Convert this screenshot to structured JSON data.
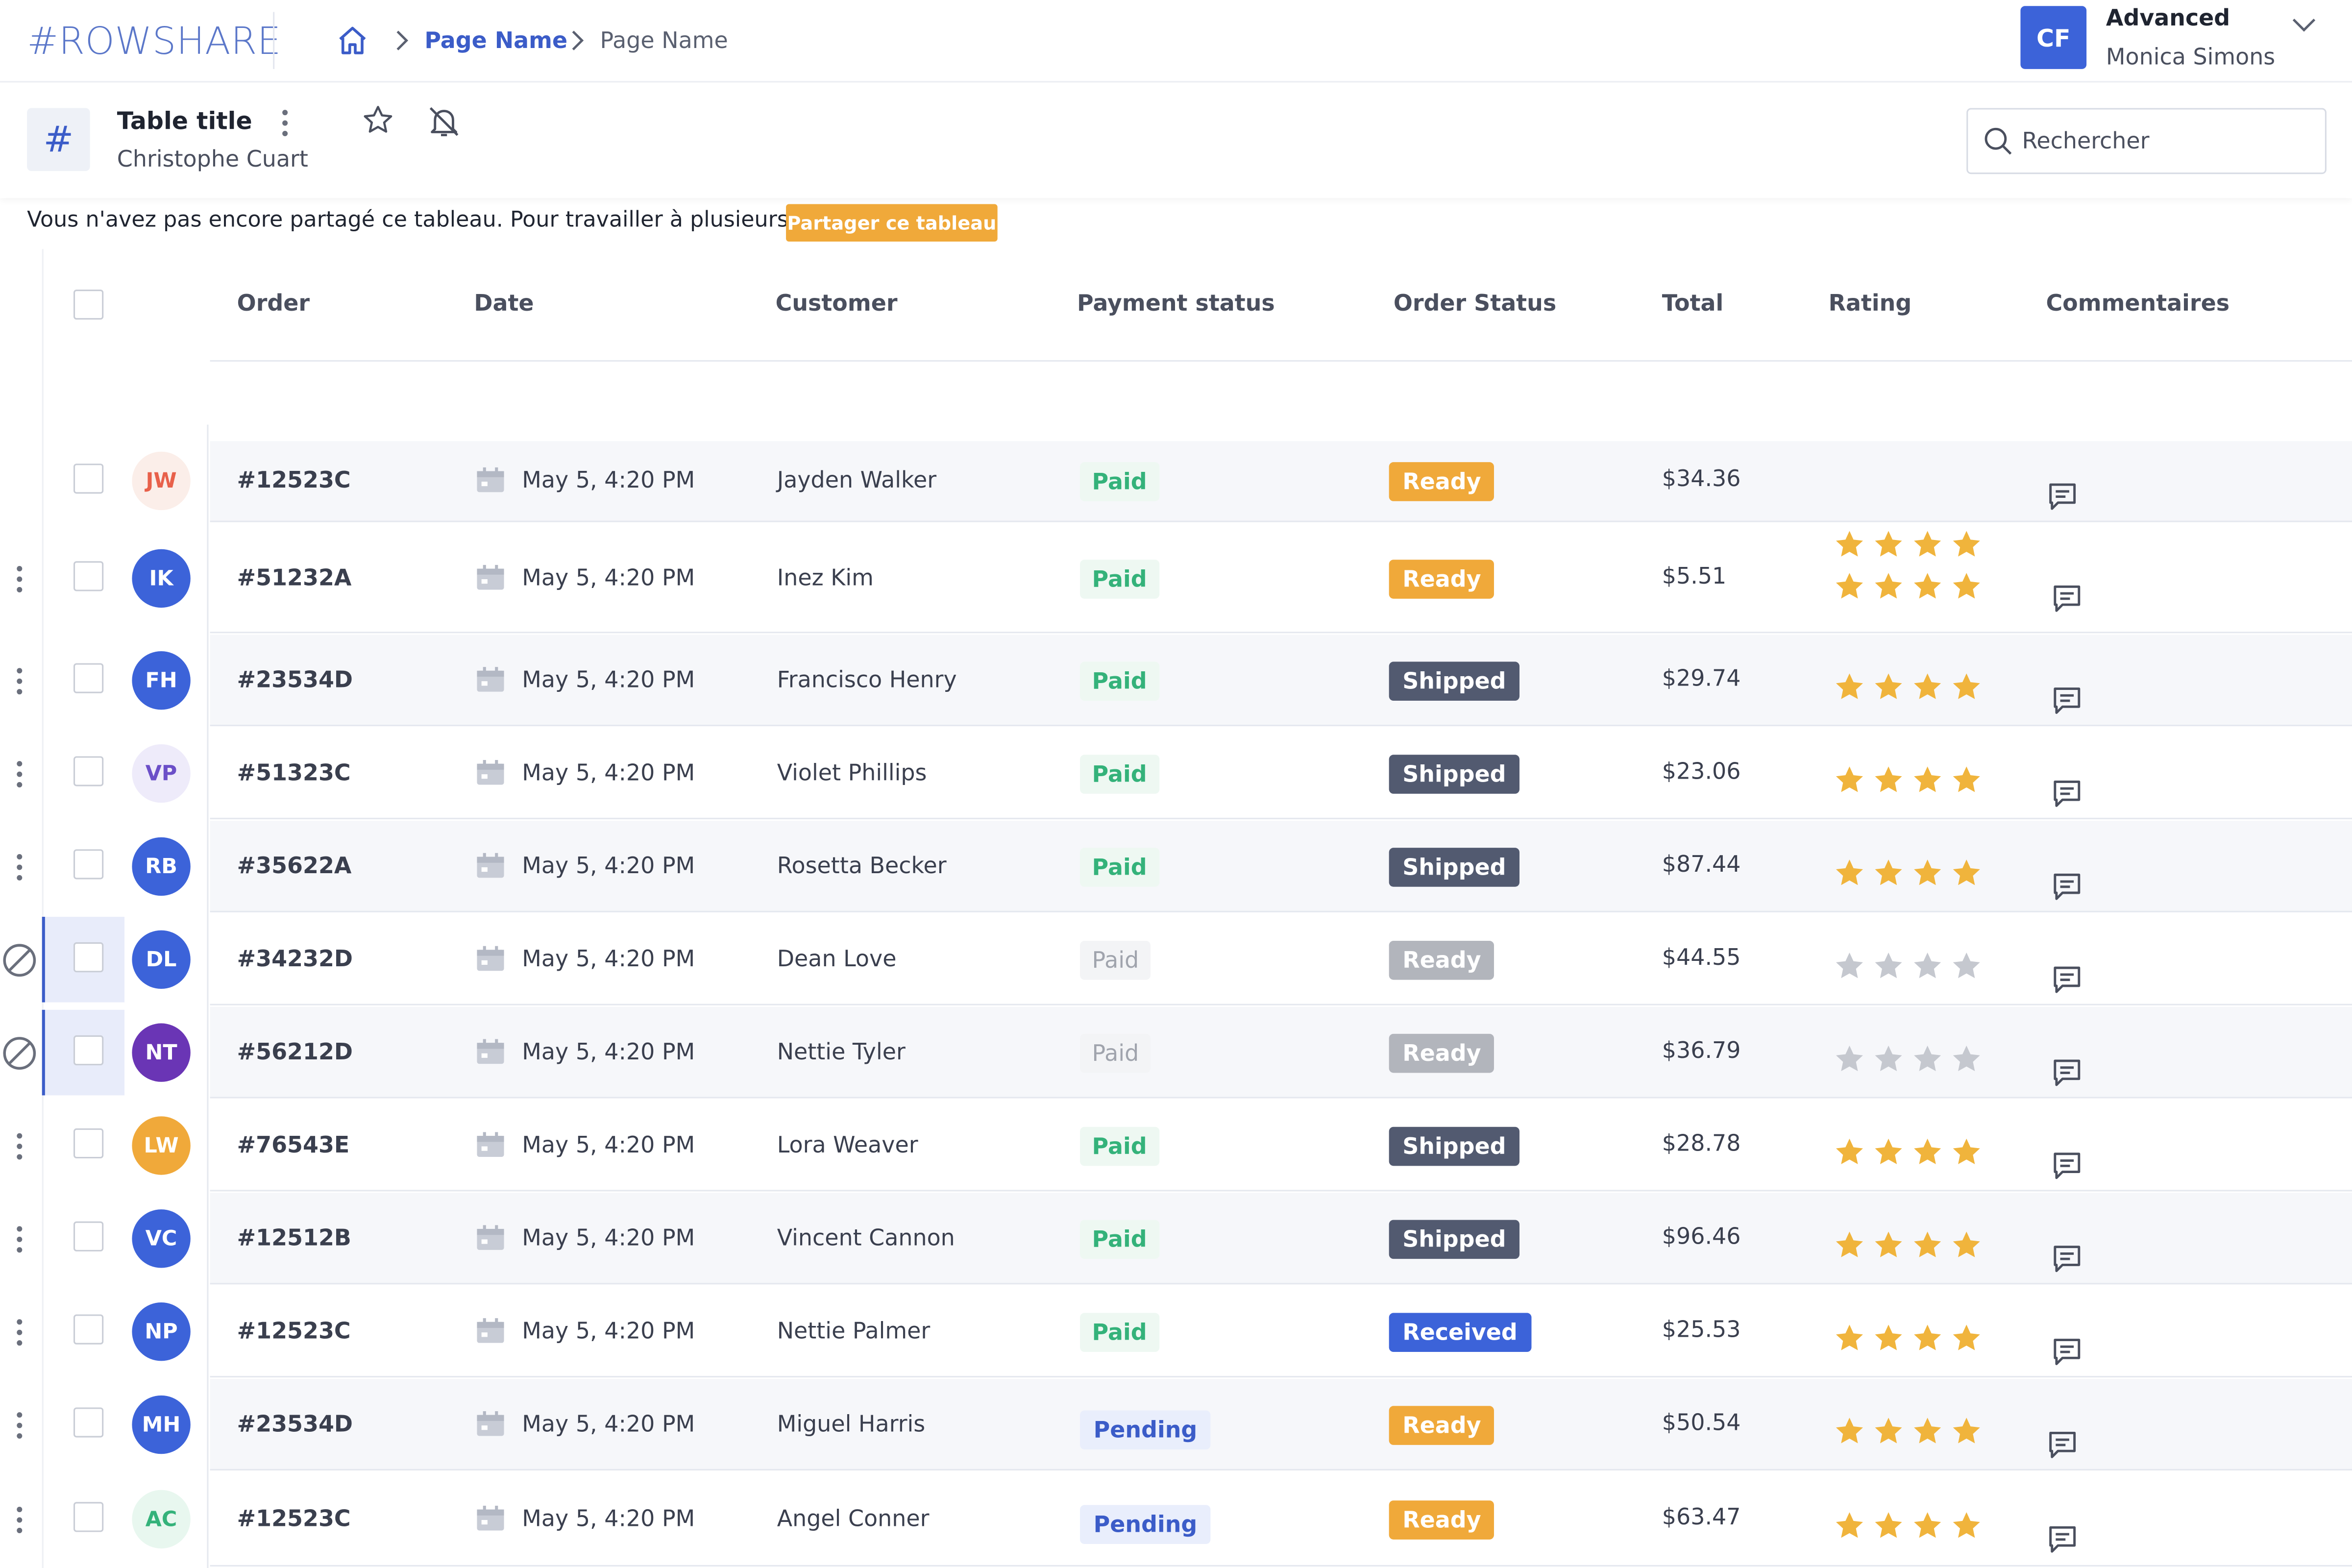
{
  "brand": {
    "logo": "#ROWSHARE"
  },
  "breadcrumb": {
    "items": [
      "Page Name",
      "Page Name"
    ]
  },
  "user": {
    "initials": "CF",
    "plan": "Advanced",
    "name": "Monica Simons"
  },
  "table": {
    "title": "Table title",
    "owner": "Christophe Cuart",
    "hash": "#"
  },
  "search": {
    "placeholder": "Rechercher"
  },
  "notice": {
    "text": "Vous n'avez pas encore partagé ce tableau. Pour travailler à plusieurs :",
    "button": "Partager ce tableau"
  },
  "columns": [
    "Order",
    "Date",
    "Customer",
    "Payment status",
    "Order Status",
    "Total",
    "Rating",
    "Commentaires"
  ],
  "colors": {
    "accent": "#3c63d9",
    "ready": "#f0a93a",
    "shipped": "#525a70",
    "paid": "#34b27a",
    "star": "#f0b43c"
  },
  "rows": [
    {
      "initials": "JW",
      "order": "#12523C",
      "date": "May 5, 4:20 PM",
      "customer": "Jayden Walker",
      "payment": "Paid",
      "status": "Ready",
      "total": "$34.36",
      "rating": 0
    },
    {
      "initials": "IK",
      "order": "#51232A",
      "date": "May 5, 4:20 PM",
      "customer": "Inez Kim",
      "payment": "Paid",
      "status": "Ready",
      "total": "$5.51",
      "rating": 4
    },
    {
      "initials": "FH",
      "order": "#23534D",
      "date": "May 5, 4:20 PM",
      "customer": "Francisco Henry",
      "payment": "Paid",
      "status": "Shipped",
      "total": "$29.74",
      "rating": 4
    },
    {
      "initials": "VP",
      "order": "#51323C",
      "date": "May 5, 4:20 PM",
      "customer": "Violet Phillips",
      "payment": "Paid",
      "status": "Shipped",
      "total": "$23.06",
      "rating": 4
    },
    {
      "initials": "RB",
      "order": "#35622A",
      "date": "May 5, 4:20 PM",
      "customer": "Rosetta Becker",
      "payment": "Paid",
      "status": "Shipped",
      "total": "$87.44",
      "rating": 4
    },
    {
      "initials": "DL",
      "order": "#34232D",
      "date": "May 5, 4:20 PM",
      "customer": "Dean Love",
      "payment": "Paid",
      "status": "Ready",
      "total": "$44.55",
      "rating": 4,
      "blocked": true
    },
    {
      "initials": "NT",
      "order": "#56212D",
      "date": "May 5, 4:20 PM",
      "customer": "Nettie Tyler",
      "payment": "Paid",
      "status": "Ready",
      "total": "$36.79",
      "rating": 4,
      "blocked": true
    },
    {
      "initials": "LW",
      "order": "#76543E",
      "date": "May 5, 4:20 PM",
      "customer": "Lora Weaver",
      "payment": "Paid",
      "status": "Shipped",
      "total": "$28.78",
      "rating": 4
    },
    {
      "initials": "VC",
      "order": "#12512B",
      "date": "May 5, 4:20 PM",
      "customer": "Vincent Cannon",
      "payment": "Paid",
      "status": "Shipped",
      "total": "$96.46",
      "rating": 4
    },
    {
      "initials": "NP",
      "order": "#12523C",
      "date": "May 5, 4:20 PM",
      "customer": "Nettie Palmer",
      "payment": "Paid",
      "status": "Received",
      "total": "$25.53",
      "rating": 4
    },
    {
      "initials": "MH",
      "order": "#23534D",
      "date": "May 5, 4:20 PM",
      "customer": "Miguel Harris",
      "payment": "Pending",
      "status": "Ready",
      "total": "$50.54",
      "rating": 4
    },
    {
      "initials": "AC",
      "order": "#12523C",
      "date": "May 5, 4:20 PM",
      "customer": "Angel Conner",
      "payment": "Pending",
      "status": "Ready",
      "total": "$63.47",
      "rating": 4
    }
  ]
}
